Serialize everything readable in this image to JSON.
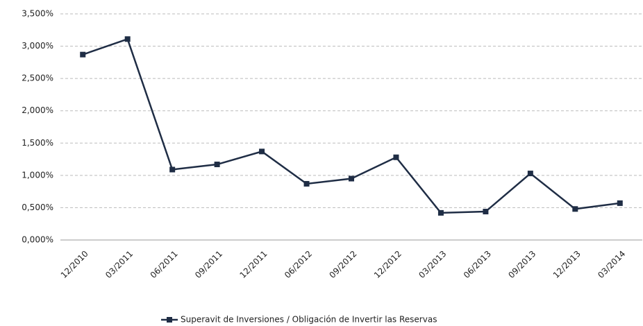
{
  "chart_data": {
    "type": "line",
    "categories": [
      "12/2010",
      "03/2011",
      "06/2011",
      "09/2011",
      "12/2011",
      "06/2012",
      "09/2012",
      "12/2012",
      "03/2013",
      "06/2013",
      "09/2013",
      "12/2013",
      "03/2014"
    ],
    "series": [
      {
        "name": "Superavit de Inversiones / Obligación de Invertir las Reservas",
        "color": "#1f2d45",
        "values": [
          2.87,
          3.11,
          1.09,
          1.17,
          1.37,
          0.87,
          0.95,
          1.28,
          0.42,
          0.44,
          1.03,
          0.48,
          0.57
        ]
      }
    ],
    "ylim": [
      0,
      3.5
    ],
    "yticks": [
      {
        "value": 0,
        "label": "0,000%"
      },
      {
        "value": 0.5,
        "label": "0,500%"
      },
      {
        "value": 1,
        "label": "1,000%"
      },
      {
        "value": 1.5,
        "label": "1,500%"
      },
      {
        "value": 2,
        "label": "2,000%"
      },
      {
        "value": 2.5,
        "label": "2,500%"
      },
      {
        "value": 3,
        "label": "3,000%"
      },
      {
        "value": 3.5,
        "label": "3,500%"
      }
    ],
    "grid": true,
    "legend": "bottom"
  }
}
